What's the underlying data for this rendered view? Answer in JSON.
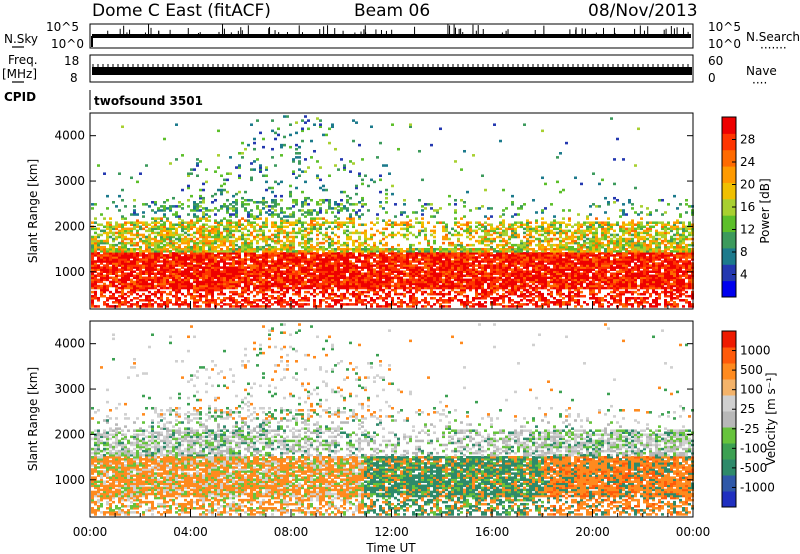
{
  "header": {
    "station": "Dome C East (fitACF)",
    "beam": "Beam 06",
    "date": "08/Nov/2013"
  },
  "strip": {
    "nsky_label": "N.Sky",
    "nsearch_label": "N.Search",
    "nsearch_dots": "·······",
    "left_ticks": [
      "10^5",
      "10^0"
    ],
    "right_ticks": [
      "10^5",
      "10^0"
    ],
    "freq_label": "Freq.",
    "freq_unit": "[MHz]",
    "freq_ticks": [
      "18",
      "8"
    ],
    "nave_label": "Nave",
    "nave_dots": "····",
    "nave_ticks": [
      "60",
      "0"
    ],
    "cpid_label": "CPID",
    "cpid_value": "twofsound 3501"
  },
  "chart_data": [
    {
      "type": "heatmap",
      "name": "power",
      "ylabel": "Slant Range [km]",
      "xlabel": "",
      "ylim": [
        180,
        4500
      ],
      "yticks": [
        "4000",
        "3000",
        "2000",
        "1000"
      ],
      "colorbar": {
        "label": "Power [dB]",
        "ticks": [
          "28",
          "24",
          "20",
          "16",
          "12",
          "8",
          "4"
        ],
        "colors": [
          "#0000ee",
          "#2438b0",
          "#1c7a8c",
          "#3c9a5c",
          "#5cbf2a",
          "#a8d030",
          "#f0c000",
          "#ff9a00",
          "#ff6a00",
          "#ff3500",
          "#ee0000"
        ]
      },
      "bands": [
        {
          "range": [
            400,
            1400
          ],
          "level": "high"
        },
        {
          "range": [
            1400,
            2300
          ],
          "level": "medium"
        },
        {
          "range": [
            2300,
            4400
          ],
          "level": "low"
        }
      ]
    },
    {
      "type": "heatmap",
      "name": "velocity",
      "ylabel": "Slant Range [km]",
      "xlabel": "Time UT",
      "ylim": [
        180,
        4500
      ],
      "yticks": [
        "4000",
        "3000",
        "2000",
        "1000"
      ],
      "xticks": [
        "00:00",
        "04:00",
        "08:00",
        "12:00",
        "16:00",
        "20:00",
        "00:00"
      ],
      "xrange_hours": [
        0,
        24
      ],
      "colorbar": {
        "label": "Velocity [m s⁻¹]",
        "ticks": [
          "1000",
          "500",
          "100",
          "25",
          "-25",
          "-100",
          "-500",
          "-1000"
        ],
        "colors": [
          "#2030c0",
          "#2f58a8",
          "#2e8a6a",
          "#3ca052",
          "#66c33c",
          "#b8b8b8",
          "#d0d0d0",
          "#f4b36a",
          "#ff8a1e",
          "#ff5a0a",
          "#ee1a00"
        ]
      }
    }
  ]
}
